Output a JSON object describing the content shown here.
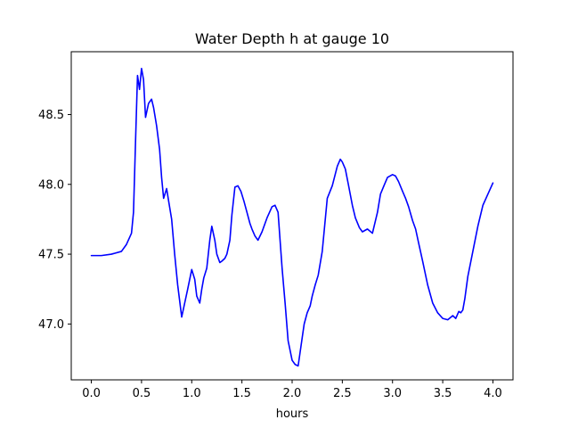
{
  "chart_data": {
    "type": "line",
    "title": "Water Depth h at gauge 10",
    "xlabel": "hours",
    "ylabel": "",
    "xlim": [
      -0.2,
      4.2
    ],
    "ylim": [
      46.6,
      48.95
    ],
    "xticks": [
      0.0,
      0.5,
      1.0,
      1.5,
      2.0,
      2.5,
      3.0,
      3.5,
      4.0
    ],
    "xtick_labels": [
      "0.0",
      "0.5",
      "1.0",
      "1.5",
      "2.0",
      "2.5",
      "3.0",
      "3.5",
      "4.0"
    ],
    "yticks": [
      47.0,
      47.5,
      48.0,
      48.5
    ],
    "ytick_labels": [
      "47.0",
      "47.5",
      "48.0",
      "48.5"
    ],
    "grid": false,
    "series": [
      {
        "color": "#0000ff",
        "x": [
          0.0,
          0.1,
          0.2,
          0.3,
          0.35,
          0.4,
          0.42,
          0.44,
          0.46,
          0.48,
          0.5,
          0.52,
          0.54,
          0.57,
          0.6,
          0.62,
          0.65,
          0.68,
          0.7,
          0.72,
          0.75,
          0.77,
          0.8,
          0.83,
          0.86,
          0.9,
          0.93,
          0.96,
          1.0,
          1.03,
          1.05,
          1.08,
          1.1,
          1.12,
          1.15,
          1.18,
          1.2,
          1.23,
          1.25,
          1.28,
          1.3,
          1.33,
          1.35,
          1.38,
          1.4,
          1.43,
          1.46,
          1.49,
          1.52,
          1.55,
          1.58,
          1.6,
          1.63,
          1.66,
          1.7,
          1.75,
          1.8,
          1.83,
          1.86,
          1.88,
          1.9,
          1.93,
          1.96,
          2.0,
          2.03,
          2.06,
          2.08,
          2.1,
          2.12,
          2.15,
          2.18,
          2.2,
          2.23,
          2.26,
          2.3,
          2.35,
          2.4,
          2.45,
          2.48,
          2.5,
          2.53,
          2.56,
          2.6,
          2.63,
          2.67,
          2.7,
          2.75,
          2.8,
          2.85,
          2.88,
          2.92,
          2.95,
          3.0,
          3.03,
          3.06,
          3.1,
          3.13,
          3.16,
          3.2,
          3.23,
          3.26,
          3.3,
          3.35,
          3.4,
          3.45,
          3.5,
          3.55,
          3.6,
          3.63,
          3.66,
          3.68,
          3.7,
          3.72,
          3.75,
          3.8,
          3.85,
          3.9,
          3.95,
          4.0
        ],
        "y": [
          47.49,
          47.49,
          47.5,
          47.52,
          47.57,
          47.65,
          47.8,
          48.3,
          48.78,
          48.68,
          48.83,
          48.75,
          48.48,
          48.58,
          48.61,
          48.55,
          48.42,
          48.25,
          48.05,
          47.9,
          47.97,
          47.88,
          47.75,
          47.5,
          47.28,
          47.05,
          47.15,
          47.25,
          47.39,
          47.32,
          47.2,
          47.15,
          47.25,
          47.33,
          47.4,
          47.6,
          47.7,
          47.6,
          47.5,
          47.44,
          47.45,
          47.47,
          47.5,
          47.6,
          47.78,
          47.98,
          47.99,
          47.95,
          47.88,
          47.8,
          47.72,
          47.68,
          47.63,
          47.6,
          47.66,
          47.76,
          47.84,
          47.85,
          47.8,
          47.6,
          47.4,
          47.15,
          46.88,
          46.74,
          46.71,
          46.7,
          46.8,
          46.9,
          47.0,
          47.08,
          47.13,
          47.2,
          47.28,
          47.35,
          47.52,
          47.9,
          47.99,
          48.13,
          48.18,
          48.16,
          48.11,
          48.0,
          47.85,
          47.76,
          47.69,
          47.66,
          47.68,
          47.65,
          47.8,
          47.93,
          48.0,
          48.05,
          48.07,
          48.06,
          48.02,
          47.95,
          47.9,
          47.84,
          47.74,
          47.68,
          47.58,
          47.45,
          47.28,
          47.15,
          47.08,
          47.04,
          47.03,
          47.06,
          47.04,
          47.09,
          47.08,
          47.1,
          47.18,
          47.34,
          47.52,
          47.7,
          47.85,
          47.93,
          48.01
        ]
      }
    ]
  }
}
